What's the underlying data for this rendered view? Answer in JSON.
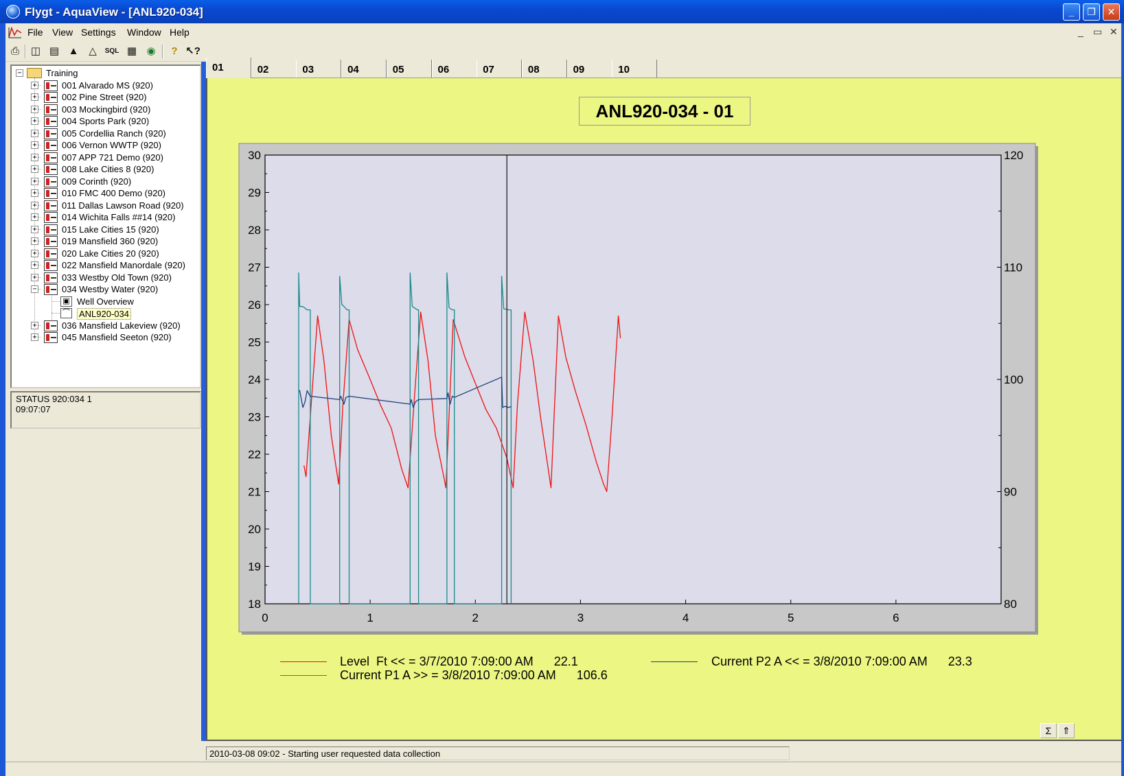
{
  "window": {
    "title": "Flygt - AquaView - [ANL920-034]",
    "controls": [
      "minimize",
      "restore",
      "close"
    ]
  },
  "menu": {
    "items": [
      {
        "label": "File"
      },
      {
        "label": "View"
      },
      {
        "label": "Settings"
      },
      {
        "label": "Window"
      },
      {
        "label": "Help"
      }
    ],
    "mdi_controls": [
      "_",
      "▭",
      "✕"
    ]
  },
  "toolbar": {
    "icons": [
      "printer-icon",
      "panel-icon",
      "list-icon",
      "alarm-icon",
      "alarm-ack-icon",
      "sql-icon",
      "report-icon",
      "view-icon",
      "help-icon",
      "context-help-icon"
    ]
  },
  "tree": {
    "root": "Training",
    "stations": [
      "001 Alvarado MS (920)",
      "002 Pine Street (920)",
      "003 Mockingbird (920)",
      "004 Sports Park (920)",
      "005 Cordellia Ranch (920)",
      "006 Vernon WWTP (920)",
      "007 APP 721 Demo (920)",
      "008 Lake Cities 8 (920)",
      "009 Corinth (920)",
      "010 FMC 400 Demo (920)",
      "011 Dallas Lawson Road (920)",
      "014 Wichita Falls ##14 (920)",
      "015 Lake Cities 15 (920)",
      "019 Mansfield 360 (920)",
      "020 Lake Cities 20 (920)",
      "022 Mansfield Manordale (920)",
      "033 Westby Old Town (920)",
      "034 Westby Water (920)"
    ],
    "children_034": [
      "Well Overview",
      "ANL920-034"
    ],
    "after": [
      "036 Mansfield Lakeview (920)",
      "045 Mansfield Seeton (920)"
    ]
  },
  "status_panel": {
    "line1": "STATUS 920:034 1",
    "line2": "09:07:07"
  },
  "tabs": [
    "01",
    "02",
    "03",
    "04",
    "05",
    "06",
    "07",
    "08",
    "09",
    "10"
  ],
  "status_line": "2010-03-08 09:02 - Starting user requested data collection",
  "chart_data": {
    "type": "line",
    "title": "ANL920-034 - 01",
    "x_ticks": [
      "0",
      "1",
      "2",
      "3",
      "4",
      "5",
      "6"
    ],
    "xlim": [
      0,
      7
    ],
    "y_left_ticks": [
      "18",
      "19",
      "20",
      "21",
      "22",
      "23",
      "24",
      "25",
      "26",
      "27",
      "28",
      "29",
      "30"
    ],
    "ylim_left": [
      18,
      30
    ],
    "y_right_ticks": [
      "80",
      "90",
      "100",
      "110",
      "120"
    ],
    "ylim_right": [
      80,
      120
    ],
    "cursor_x": 2.3,
    "colors": {
      "level": "#ee1111",
      "p1": "#1a8a8a",
      "p2": "#1a3f7a",
      "plot_bg": "#dcdcea",
      "chart_bg": "#ecf783"
    },
    "series": [
      {
        "name": "Level Ft",
        "axis": "left",
        "x": [
          0.37,
          0.39,
          0.43,
          0.5,
          0.56,
          0.63,
          0.7,
          0.74,
          0.8,
          0.88,
          1.0,
          1.1,
          1.2,
          1.3,
          1.36,
          1.42,
          1.48,
          1.55,
          1.62,
          1.7,
          1.72,
          1.79,
          1.9,
          2.0,
          2.1,
          2.2,
          2.3,
          2.36,
          2.4,
          2.47,
          2.55,
          2.62,
          2.72,
          2.79,
          2.86,
          2.95,
          3.05,
          3.15,
          3.22,
          3.25,
          3.3,
          3.36,
          3.38
        ],
        "y": [
          21.7,
          21.4,
          23.0,
          25.7,
          24.5,
          22.5,
          21.2,
          23.3,
          25.6,
          24.8,
          24.0,
          23.3,
          22.7,
          21.6,
          21.1,
          23.5,
          25.8,
          24.5,
          22.5,
          21.4,
          21.1,
          25.6,
          24.6,
          23.9,
          23.2,
          22.7,
          21.9,
          21.1,
          23.3,
          25.8,
          24.5,
          23.0,
          21.1,
          25.7,
          24.6,
          23.7,
          22.8,
          21.8,
          21.2,
          21.0,
          23.0,
          25.7,
          25.1
        ]
      },
      {
        "name": "Current P1 A",
        "axis": "right",
        "x": [
          0.32,
          0.32,
          0.33,
          0.36,
          0.4,
          0.43,
          0.43,
          0.71,
          0.71,
          0.73,
          0.78,
          0.8,
          0.8,
          1.38,
          1.38,
          1.4,
          1.45,
          1.46,
          1.46,
          1.73,
          1.73,
          1.75,
          1.78,
          1.8,
          1.8,
          2.25,
          2.25,
          2.27,
          2.32,
          2.34,
          2.34
        ],
        "y": [
          80,
          109.5,
          106.5,
          106.5,
          106.2,
          106.2,
          80,
          80,
          109.2,
          106.7,
          106.2,
          106.2,
          80,
          80,
          109.5,
          106.5,
          106.2,
          106.2,
          80,
          80,
          109.5,
          106.4,
          106.2,
          106.2,
          80,
          80,
          109.2,
          106.3,
          106.2,
          106.2,
          80
        ]
      },
      {
        "name": "Current P2 A",
        "axis": "right",
        "x": [
          0.32,
          0.33,
          0.36,
          0.38,
          0.4,
          0.43,
          0.71,
          0.72,
          0.75,
          0.77,
          0.8,
          1.38,
          1.39,
          1.41,
          1.43,
          1.46,
          1.73,
          1.74,
          1.76,
          1.78,
          1.8,
          2.25,
          2.26,
          2.28,
          2.32,
          2.34
        ],
        "y": [
          99.0,
          99.0,
          97.5,
          98.0,
          99.0,
          98.5,
          98.2,
          98.5,
          97.8,
          98.4,
          98.5,
          97.8,
          98.2,
          97.5,
          98.0,
          98.2,
          98.3,
          98.8,
          97.8,
          98.5,
          98.4,
          100.2,
          97.5,
          97.6,
          97.5,
          97.6
        ]
      }
    ],
    "legend": [
      {
        "label": "Level  Ft << = 3/7/2010 7:09:00 AM      22.1",
        "color": "#ee1111"
      },
      {
        "label": "Current P2 A << = 3/8/2010 7:09:00 AM      23.3",
        "color": "#1a3f7a"
      },
      {
        "label": "Current P1 A >> = 3/8/2010 7:09:00 AM      106.6",
        "color": "#1a8a8a"
      }
    ]
  },
  "corner_buttons": [
    "Σ",
    "⇑"
  ]
}
